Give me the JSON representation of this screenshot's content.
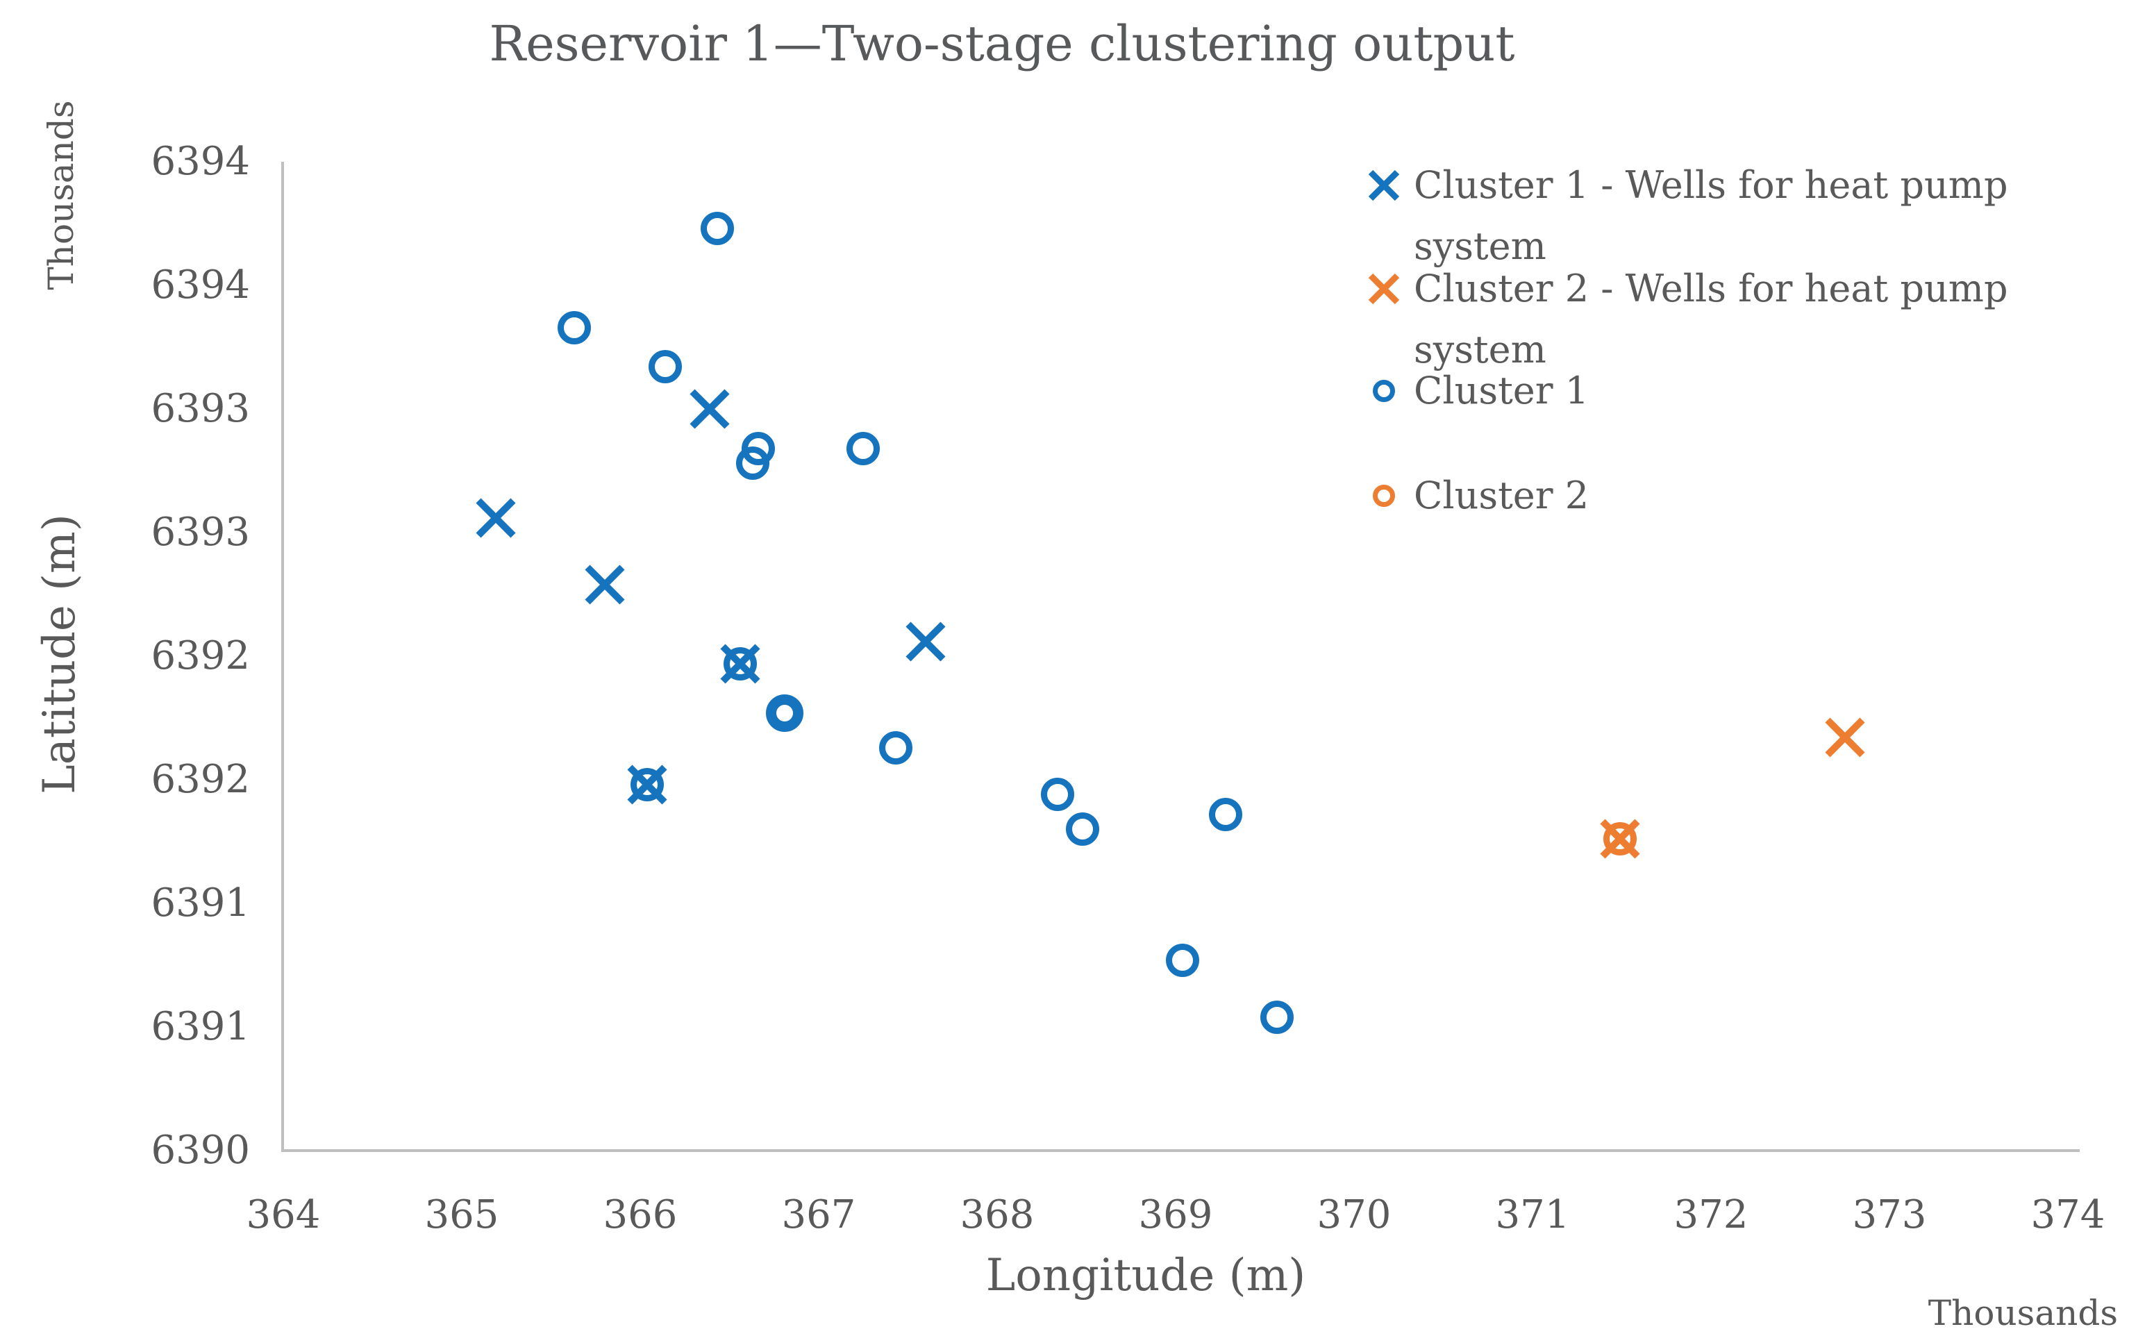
{
  "figure": {
    "title": "Reservoir 1—Two-stage clustering output",
    "colors": {
      "cluster1": "#1673BE",
      "cluster2": "#ED7D31",
      "text": "#595959",
      "axis_line": "#BFBFBF"
    },
    "y_axis": {
      "title": "Latitude (m)",
      "units_label": "Thousands",
      "tick_labels": [
        "6394",
        "6394",
        "6393",
        "6393",
        "6392",
        "6392",
        "6391",
        "6391",
        "6390"
      ],
      "tick_values": [
        6394,
        6393.5,
        6393,
        6392.5,
        6392,
        6391.5,
        6391,
        6390.5,
        6390
      ]
    },
    "x_axis": {
      "title": "Longitude (m)",
      "units_label": "Thousands",
      "tick_labels": [
        "364",
        "365",
        "366",
        "367",
        "368",
        "369",
        "370",
        "371",
        "372",
        "373",
        "374"
      ],
      "tick_values": [
        364,
        365,
        366,
        367,
        368,
        369,
        370,
        371,
        372,
        373,
        374
      ]
    },
    "legend": [
      {
        "label": "Cluster 1 - Wells for heat pump system",
        "marker": "x",
        "series": "cluster1_wells"
      },
      {
        "label": "Cluster 2 - Wells for heat pump system",
        "marker": "x",
        "series": "cluster2_wells"
      },
      {
        "label": "Cluster 1",
        "marker": "circle",
        "series": "cluster1"
      },
      {
        "label": "Cluster 2",
        "marker": "circle",
        "series": "cluster2"
      }
    ]
  },
  "chart_data": {
    "type": "scatter",
    "title": "Reservoir 1—Two-stage clustering output",
    "xlabel": "Longitude (m)",
    "ylabel": "Latitude (m)",
    "units": "thousands of meters",
    "xlim": [
      364,
      374
    ],
    "ylim": [
      6390,
      6394
    ],
    "grid": false,
    "legend_position": "right",
    "series": [
      {
        "name": "Cluster 1",
        "marker": "circle",
        "color": "#1673BE",
        "points": [
          [
            366.43,
            6393.73
          ],
          [
            365.63,
            6393.33
          ],
          [
            366.14,
            6393.17
          ],
          [
            366.66,
            6392.84
          ],
          [
            366.63,
            6392.78
          ],
          [
            367.25,
            6392.84
          ],
          [
            366.56,
            6391.97
          ],
          [
            366.81,
            6391.77
          ],
          [
            367.43,
            6391.63
          ],
          [
            368.34,
            6391.44
          ],
          [
            368.48,
            6391.3
          ],
          [
            369.28,
            6391.36
          ],
          [
            366.04,
            6391.48
          ],
          [
            369.04,
            6390.77
          ],
          [
            369.57,
            6390.54
          ]
        ],
        "double_ring_points": [
          [
            366.81,
            6391.77
          ]
        ]
      },
      {
        "name": "Cluster 2",
        "marker": "circle",
        "color": "#ED7D31",
        "points": [
          [
            371.49,
            6391.26
          ]
        ]
      },
      {
        "name": "Cluster 1 - Wells for heat pump system",
        "marker": "x",
        "color": "#1673BE",
        "points": [
          [
            366.39,
            6393.0
          ],
          [
            365.19,
            6392.56
          ],
          [
            365.8,
            6392.29
          ],
          [
            367.6,
            6392.06
          ],
          [
            366.56,
            6391.97
          ],
          [
            366.04,
            6391.48
          ]
        ]
      },
      {
        "name": "Cluster 2 - Wells for heat pump system",
        "marker": "x",
        "color": "#ED7D31",
        "points": [
          [
            372.75,
            6391.67
          ],
          [
            371.49,
            6391.26
          ]
        ]
      }
    ]
  }
}
